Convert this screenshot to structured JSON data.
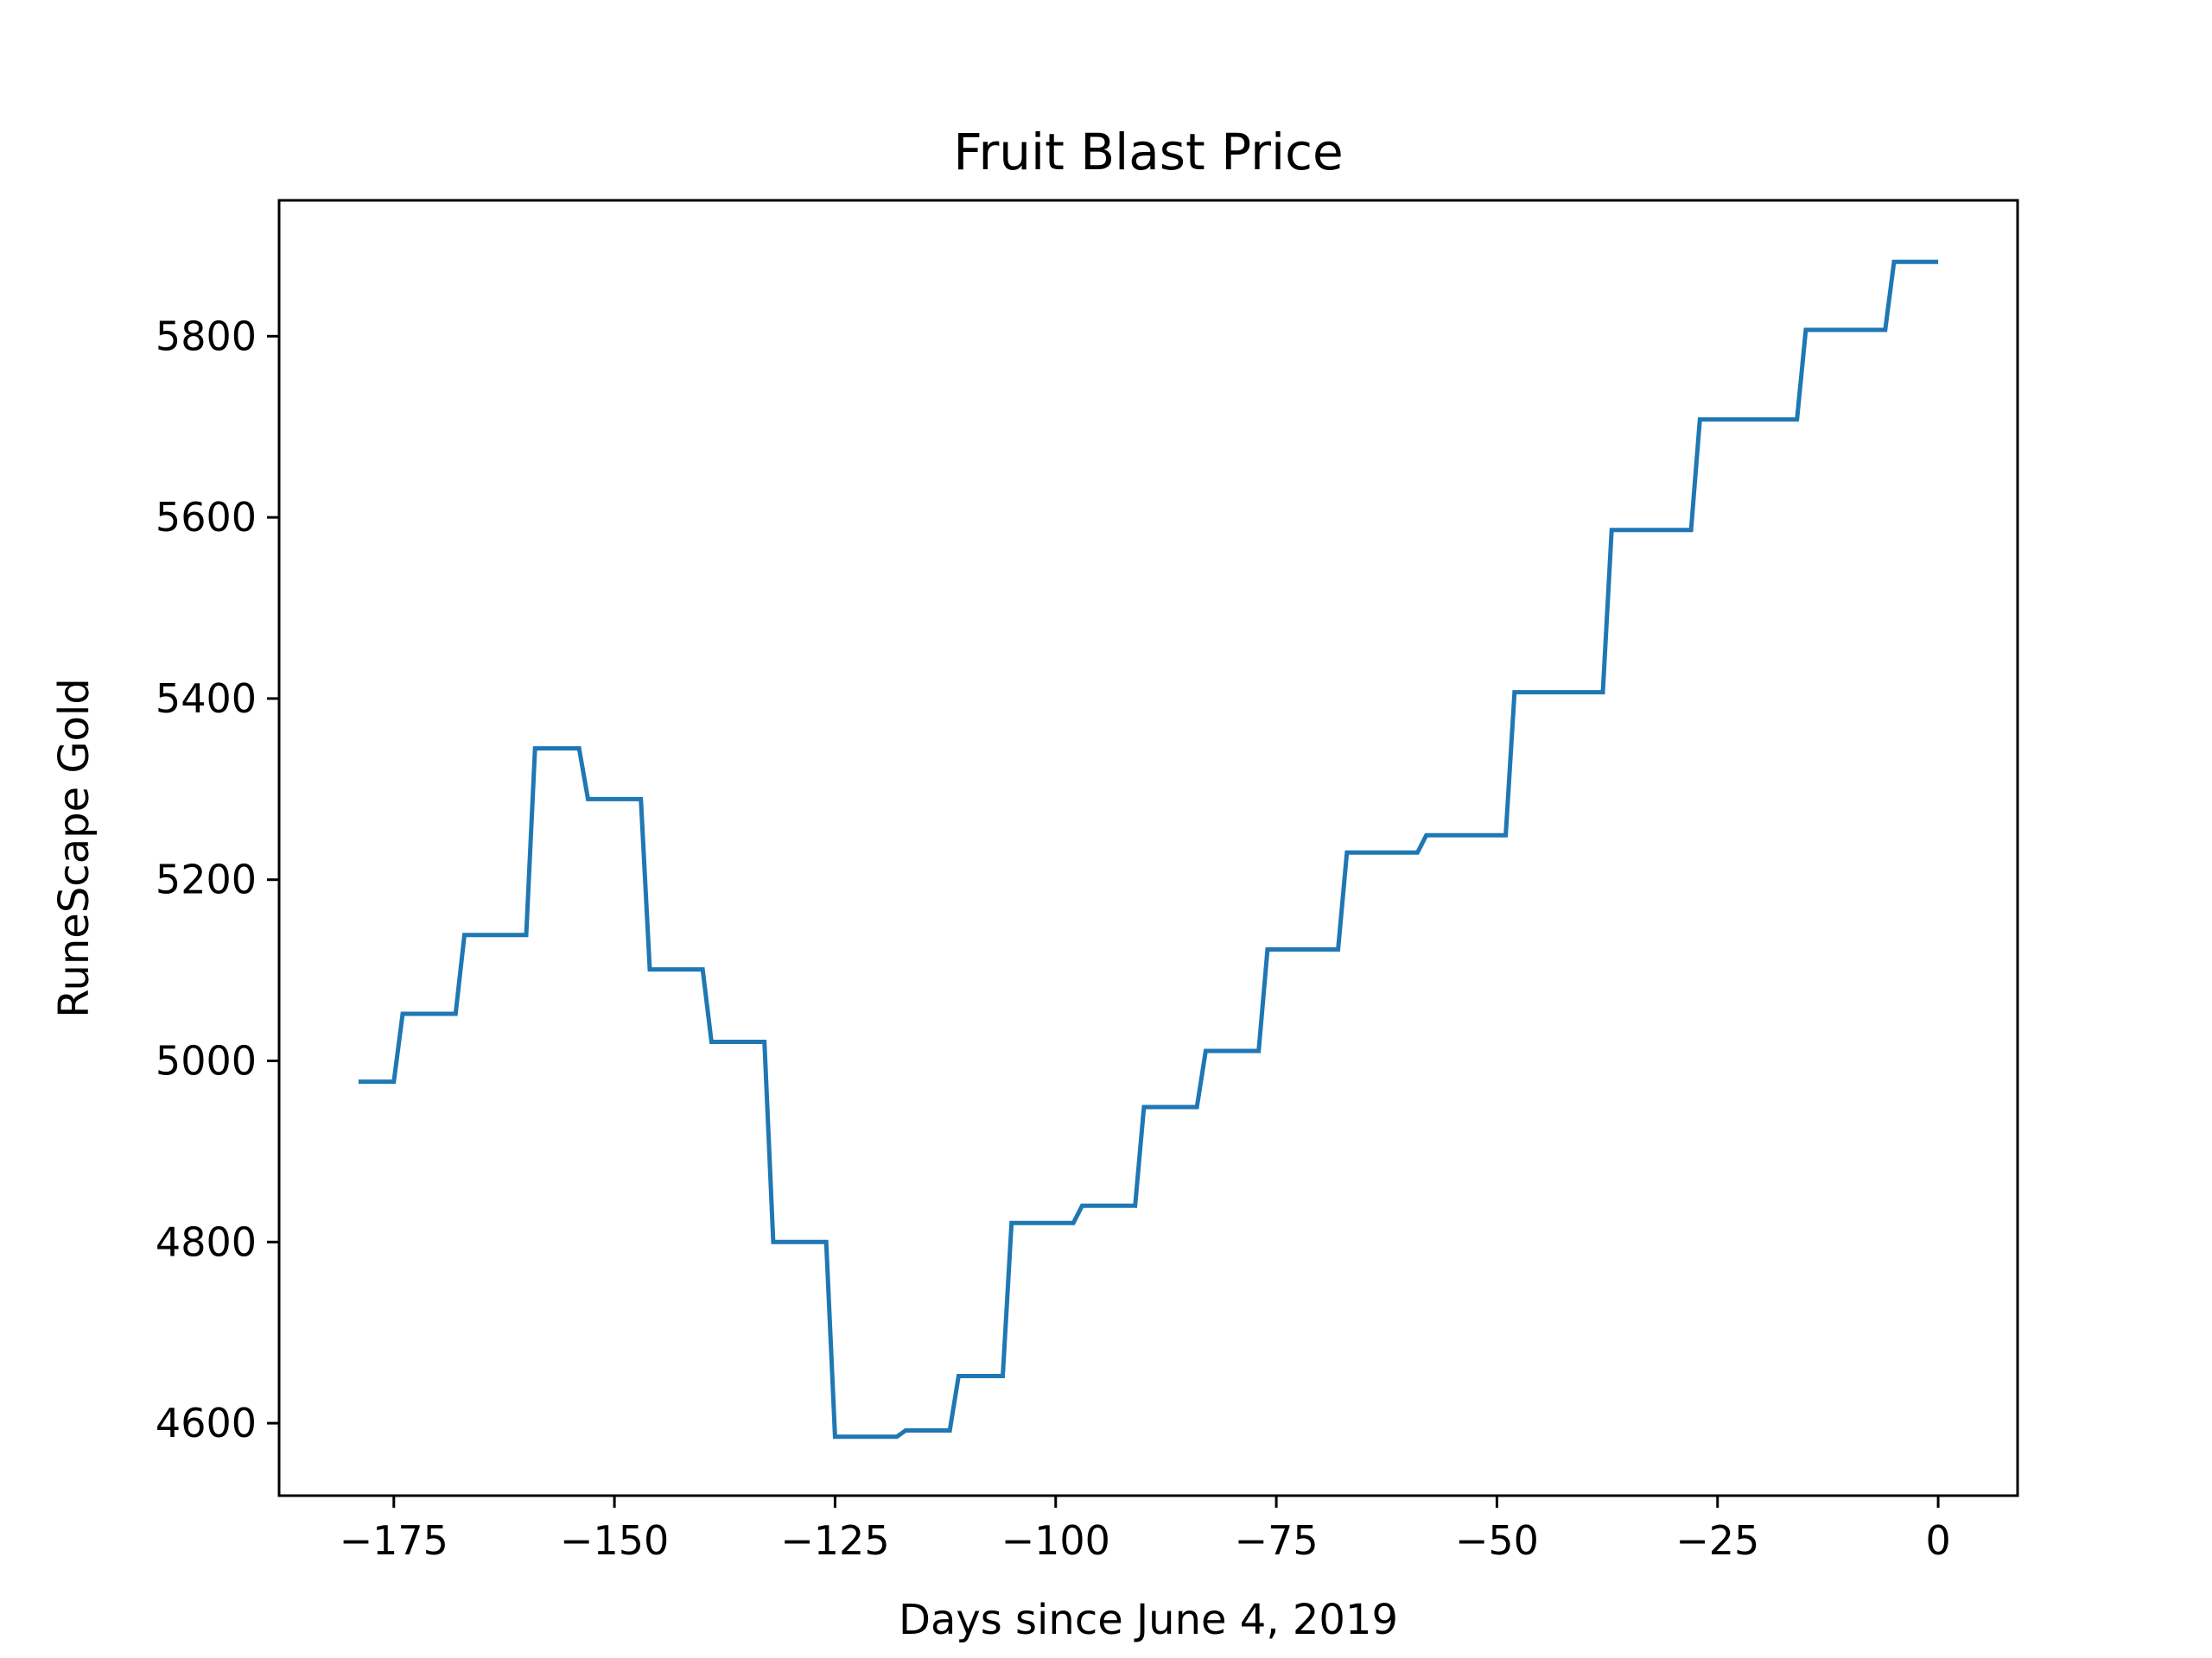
{
  "chart_data": {
    "type": "line",
    "title": "Fruit Blast Price",
    "xlabel": "Days since June 4, 2019",
    "ylabel": "RuneScape Gold",
    "xlim": [
      -188,
      9
    ],
    "ylim": [
      4520,
      5950
    ],
    "x_ticks": [
      -175,
      -150,
      -125,
      -100,
      -75,
      -50,
      -25,
      0
    ],
    "x_tick_labels": [
      "−175",
      "−150",
      "−125",
      "−100",
      "−75",
      "−50",
      "−25",
      "0"
    ],
    "y_ticks": [
      4600,
      4800,
      5000,
      5200,
      5400,
      5600,
      5800
    ],
    "y_tick_labels": [
      "4600",
      "4800",
      "5000",
      "5200",
      "5400",
      "5600",
      "5800"
    ],
    "grid": false,
    "line_color": "#1f77b4",
    "series": [
      {
        "x": [
          -179,
          -175,
          -174,
          -168,
          -167,
          -160,
          -159,
          -154,
          -153,
          -147,
          -146,
          -140,
          -139,
          -133,
          -132,
          -126,
          -125,
          -118,
          -117,
          -112,
          -111,
          -106,
          -105,
          -98,
          -97,
          -91,
          -90,
          -84,
          -83,
          -77,
          -76,
          -68,
          -67,
          -59,
          -58,
          -49,
          -48,
          -38,
          -37,
          -28,
          -27,
          -16,
          -15,
          -6,
          -5,
          0
        ],
        "y": [
          4977,
          4977,
          5052,
          5052,
          5139,
          5139,
          5345,
          5345,
          5289,
          5289,
          5101,
          5101,
          5021,
          5021,
          4800,
          4800,
          4585,
          4585,
          4592,
          4592,
          4652,
          4652,
          4821,
          4821,
          4840,
          4840,
          4949,
          4949,
          5011,
          5011,
          5123,
          5123,
          5230,
          5230,
          5249,
          5249,
          5407,
          5407,
          5586,
          5586,
          5708,
          5708,
          5807,
          5807,
          5882,
          5882
        ]
      }
    ]
  }
}
